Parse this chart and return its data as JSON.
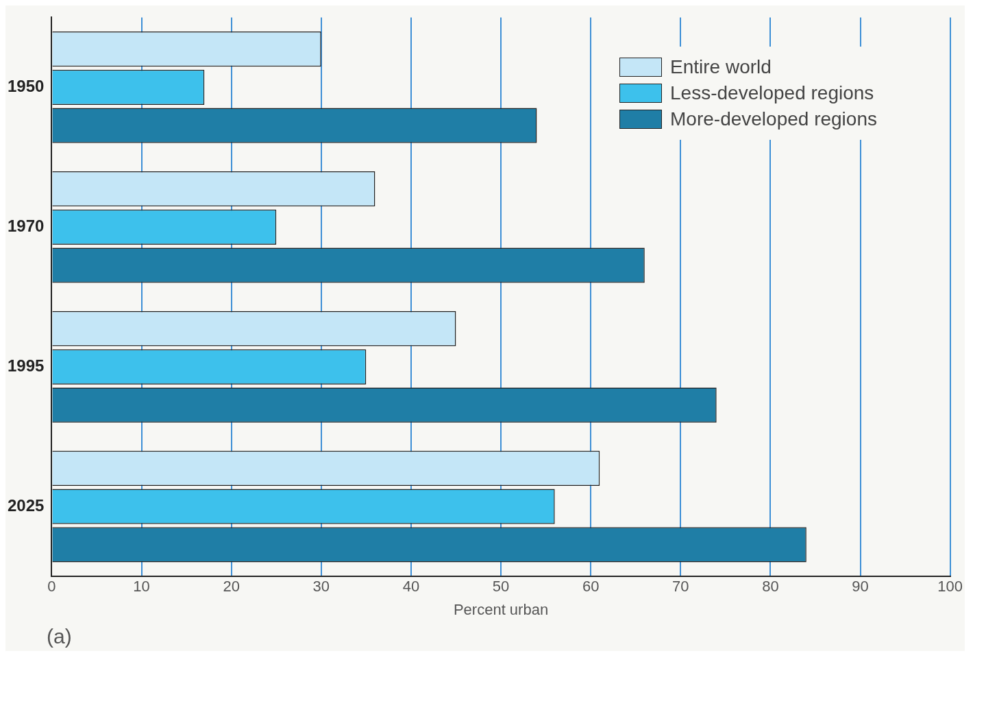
{
  "chart_data": {
    "type": "bar",
    "orientation": "horizontal",
    "xlabel": "Percent urban",
    "categories": [
      "1950",
      "1970",
      "1995",
      "2025"
    ],
    "series": [
      {
        "name": "Entire world",
        "color": "#c4e6f7",
        "values": [
          30,
          36,
          45,
          61
        ]
      },
      {
        "name": "Less-developed regions",
        "color": "#3dc1ec",
        "values": [
          17,
          25,
          35,
          56
        ]
      },
      {
        "name": "More-developed regions",
        "color": "#1f7ea6",
        "values": [
          54,
          66,
          74,
          84
        ]
      }
    ],
    "xlim": [
      0,
      100
    ],
    "xticks": [
      0,
      10,
      20,
      30,
      40,
      50,
      60,
      70,
      80,
      90,
      100
    ],
    "grid": "x",
    "legend": "top right",
    "annotations": [
      "(a)"
    ]
  }
}
